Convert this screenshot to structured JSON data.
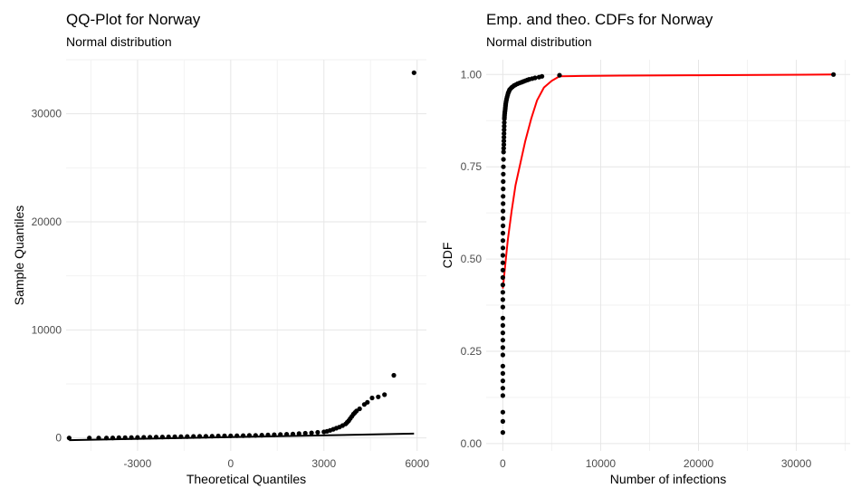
{
  "charts": [
    {
      "id": "qq",
      "title": "QQ-Plot for Norway",
      "subtitle": "Normal distribution",
      "xlabel": "Theoretical Quantiles",
      "ylabel": "Sample Quantiles",
      "point_color": "#000000",
      "line_color": "#000000",
      "grid": true
    },
    {
      "id": "cdf",
      "title": "Emp. and theo. CDFs for Norway",
      "subtitle": "Normal distribution",
      "xlabel": "Number of infections",
      "ylabel": "CDF",
      "point_color": "#000000",
      "line_color": "#ff0000",
      "grid": true
    }
  ],
  "chart_data": [
    {
      "type": "scatter",
      "title": "QQ-Plot for Norway",
      "subtitle": "Normal distribution",
      "xlabel": "Theoretical Quantiles",
      "ylabel": "Sample Quantiles",
      "xlim": [
        -5300,
        6300
      ],
      "ylim": [
        -1200,
        35000
      ],
      "x_ticks": [
        -3000,
        0,
        3000,
        6000
      ],
      "x_tick_labels": [
        "-3000",
        "0",
        "3000",
        "6000"
      ],
      "y_ticks": [
        0,
        10000,
        20000,
        30000
      ],
      "y_tick_labels": [
        "0",
        "10000",
        "20000",
        "30000"
      ],
      "grid": true,
      "series": [
        {
          "kind": "points",
          "x": [
            -5200,
            -4550,
            -4250,
            -4000,
            -3800,
            -3600,
            -3400,
            -3200,
            -3000,
            -2800,
            -2600,
            -2400,
            -2200,
            -2000,
            -1800,
            -1600,
            -1400,
            -1200,
            -1000,
            -800,
            -600,
            -400,
            -200,
            0,
            200,
            400,
            600,
            800,
            1000,
            1200,
            1400,
            1600,
            1800,
            2000,
            2200,
            2400,
            2600,
            2800,
            3000,
            3100,
            3200,
            3300,
            3400,
            3500,
            3600,
            3700,
            3750,
            3800,
            3850,
            3900,
            3950,
            4000,
            4050,
            4150,
            4300,
            4400,
            4550,
            4750,
            4950,
            5250,
            5900
          ],
          "y": [
            0,
            0,
            0,
            0,
            10,
            20,
            30,
            40,
            50,
            60,
            70,
            80,
            90,
            100,
            110,
            120,
            130,
            140,
            150,
            160,
            170,
            180,
            190,
            200,
            210,
            220,
            230,
            240,
            260,
            280,
            300,
            320,
            340,
            370,
            400,
            430,
            470,
            520,
            560,
            620,
            700,
            800,
            900,
            1000,
            1150,
            1300,
            1450,
            1600,
            1800,
            2000,
            2200,
            2350,
            2500,
            2700,
            3100,
            3300,
            3700,
            3800,
            4000,
            5800,
            33800
          ]
        },
        {
          "kind": "line",
          "x": [
            -5200,
            5900
          ],
          "y": [
            -200,
            400
          ]
        }
      ]
    },
    {
      "type": "line",
      "title": "Emp. and theo. CDFs for Norway",
      "subtitle": "Normal distribution",
      "xlabel": "Number of infections",
      "ylabel": "CDF",
      "xlim": [
        -1700,
        35500
      ],
      "ylim": [
        -0.02,
        1.04
      ],
      "x_ticks": [
        0,
        10000,
        20000,
        30000
      ],
      "x_tick_labels": [
        "0",
        "10000",
        "20000",
        "30000"
      ],
      "y_ticks": [
        0.0,
        0.25,
        0.5,
        0.75,
        1.0
      ],
      "y_tick_labels": [
        "0.00",
        "0.25",
        "0.50",
        "0.75",
        "1.00"
      ],
      "grid": true,
      "series": [
        {
          "kind": "points",
          "x": [
            0,
            0,
            0,
            0,
            0,
            0,
            0,
            0,
            0,
            0,
            0,
            0,
            0,
            0,
            0,
            0,
            0,
            0,
            0,
            0,
            0,
            0,
            10,
            10,
            10,
            20,
            20,
            20,
            30,
            30,
            40,
            40,
            50,
            60,
            70,
            80,
            90,
            100,
            100,
            110,
            120,
            130,
            140,
            150,
            160,
            170,
            180,
            200,
            220,
            240,
            260,
            280,
            300,
            330,
            360,
            400,
            450,
            500,
            550,
            600,
            650,
            700,
            800,
            900,
            1000,
            1150,
            1300,
            1500,
            1700,
            1900,
            2100,
            2300,
            2500,
            2700,
            3000,
            3300,
            3700,
            4000,
            5800,
            33800
          ],
          "y": [
            0.03,
            0.06,
            0.085,
            0.13,
            0.15,
            0.17,
            0.19,
            0.21,
            0.24,
            0.26,
            0.28,
            0.3,
            0.32,
            0.34,
            0.37,
            0.39,
            0.41,
            0.43,
            0.45,
            0.47,
            0.49,
            0.51,
            0.53,
            0.55,
            0.57,
            0.59,
            0.61,
            0.63,
            0.65,
            0.67,
            0.69,
            0.71,
            0.73,
            0.75,
            0.77,
            0.79,
            0.8,
            0.81,
            0.82,
            0.83,
            0.84,
            0.85,
            0.86,
            0.87,
            0.88,
            0.885,
            0.89,
            0.895,
            0.9,
            0.905,
            0.91,
            0.915,
            0.92,
            0.925,
            0.93,
            0.935,
            0.94,
            0.945,
            0.95,
            0.953,
            0.956,
            0.959,
            0.962,
            0.965,
            0.967,
            0.97,
            0.972,
            0.975,
            0.977,
            0.979,
            0.981,
            0.983,
            0.985,
            0.987,
            0.989,
            0.991,
            0.993,
            0.995,
            0.998,
            1.0
          ]
        },
        {
          "kind": "line",
          "x": [
            0,
            200,
            500,
            900,
            1300,
            1800,
            2300,
            2900,
            3500,
            4200,
            5000,
            5800,
            8000,
            12000,
            20000,
            33800
          ],
          "y": [
            0.42,
            0.47,
            0.55,
            0.63,
            0.7,
            0.76,
            0.82,
            0.88,
            0.93,
            0.965,
            0.983,
            0.995,
            0.996,
            0.997,
            0.998,
            1.0
          ]
        }
      ]
    }
  ]
}
